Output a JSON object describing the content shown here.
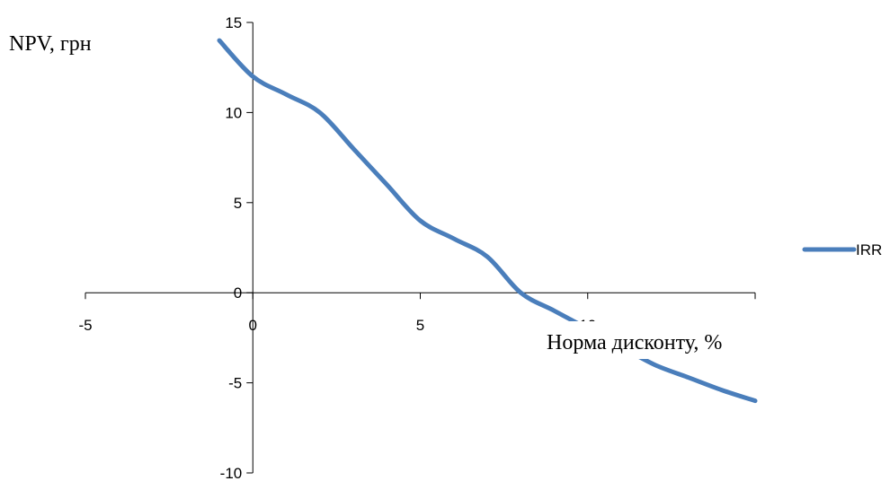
{
  "chart_data": {
    "type": "line",
    "title": "",
    "xlabel": "Норма дисконту, %",
    "ylabel": "NPV, грн",
    "xlim": [
      -5,
      15
    ],
    "ylim": [
      -10,
      15
    ],
    "x_ticks": [
      -5,
      0,
      5,
      10
    ],
    "y_ticks": [
      -10,
      -5,
      0,
      5,
      10,
      15
    ],
    "grid": false,
    "legend_position": "right",
    "series": [
      {
        "name": "IRR",
        "color": "#4a7ebb",
        "x": [
          -1,
          0,
          1,
          2,
          3,
          4,
          5,
          6,
          7,
          8,
          9,
          10,
          11,
          12,
          13,
          14,
          15
        ],
        "y": [
          14,
          12,
          11,
          10,
          8,
          6,
          4,
          3,
          2,
          0,
          -1,
          -2,
          -3,
          -4,
          -4.7,
          -5.4,
          -6
        ]
      }
    ]
  }
}
